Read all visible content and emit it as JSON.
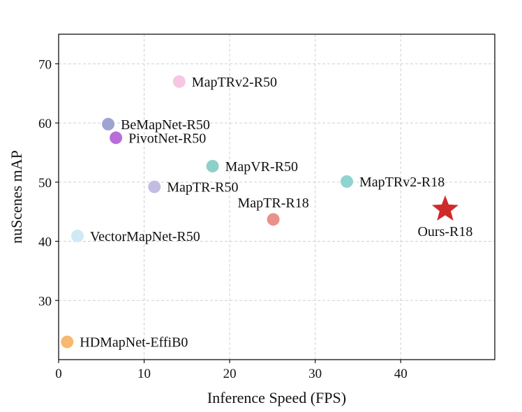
{
  "chart_data": {
    "type": "scatter",
    "title": "",
    "xlabel": "Inference Speed (FPS)",
    "ylabel": "nuScenes mAP",
    "xlim": [
      0,
      51
    ],
    "ylim": [
      20,
      75
    ],
    "xticks": [
      0,
      10,
      20,
      30,
      40
    ],
    "yticks": [
      30,
      40,
      50,
      60,
      70
    ],
    "grid": true,
    "legend": "none",
    "points": [
      {
        "label": "HDMapNet-EffiB0",
        "x": 1.0,
        "y": 23.0,
        "color": "#f8b870",
        "marker": "circle",
        "label_pos": "right"
      },
      {
        "label": "VectorMapNet-R50",
        "x": 2.2,
        "y": 40.9,
        "color": "#cfeaf4",
        "marker": "circle",
        "label_pos": "right"
      },
      {
        "label": "BeMapNet-R50",
        "x": 5.8,
        "y": 59.8,
        "color": "#9fa3cf",
        "marker": "circle",
        "label_pos": "right"
      },
      {
        "label": "PivotNet-R50",
        "x": 6.7,
        "y": 57.5,
        "color": "#b86dd9",
        "marker": "circle",
        "label_pos": "right"
      },
      {
        "label": "MapTR-R50",
        "x": 11.2,
        "y": 49.2,
        "color": "#c3bde3",
        "marker": "circle",
        "label_pos": "right"
      },
      {
        "label": "MapTRv2-R50",
        "x": 14.1,
        "y": 67.0,
        "color": "#f6c6e3",
        "marker": "circle",
        "label_pos": "right"
      },
      {
        "label": "MapVR-R50",
        "x": 18.0,
        "y": 52.7,
        "color": "#8fcfc9",
        "marker": "circle",
        "label_pos": "right"
      },
      {
        "label": "MapTR-R18",
        "x": 25.1,
        "y": 43.7,
        "color": "#ea9189",
        "marker": "circle",
        "label_pos": "above"
      },
      {
        "label": "MapTRv2-R18",
        "x": 33.7,
        "y": 50.1,
        "color": "#8fd4cf",
        "marker": "circle",
        "label_pos": "right"
      },
      {
        "label": "Ours-R18",
        "x": 45.2,
        "y": 45.4,
        "color": "#cf2a2a",
        "marker": "star",
        "label_pos": "below"
      }
    ]
  }
}
